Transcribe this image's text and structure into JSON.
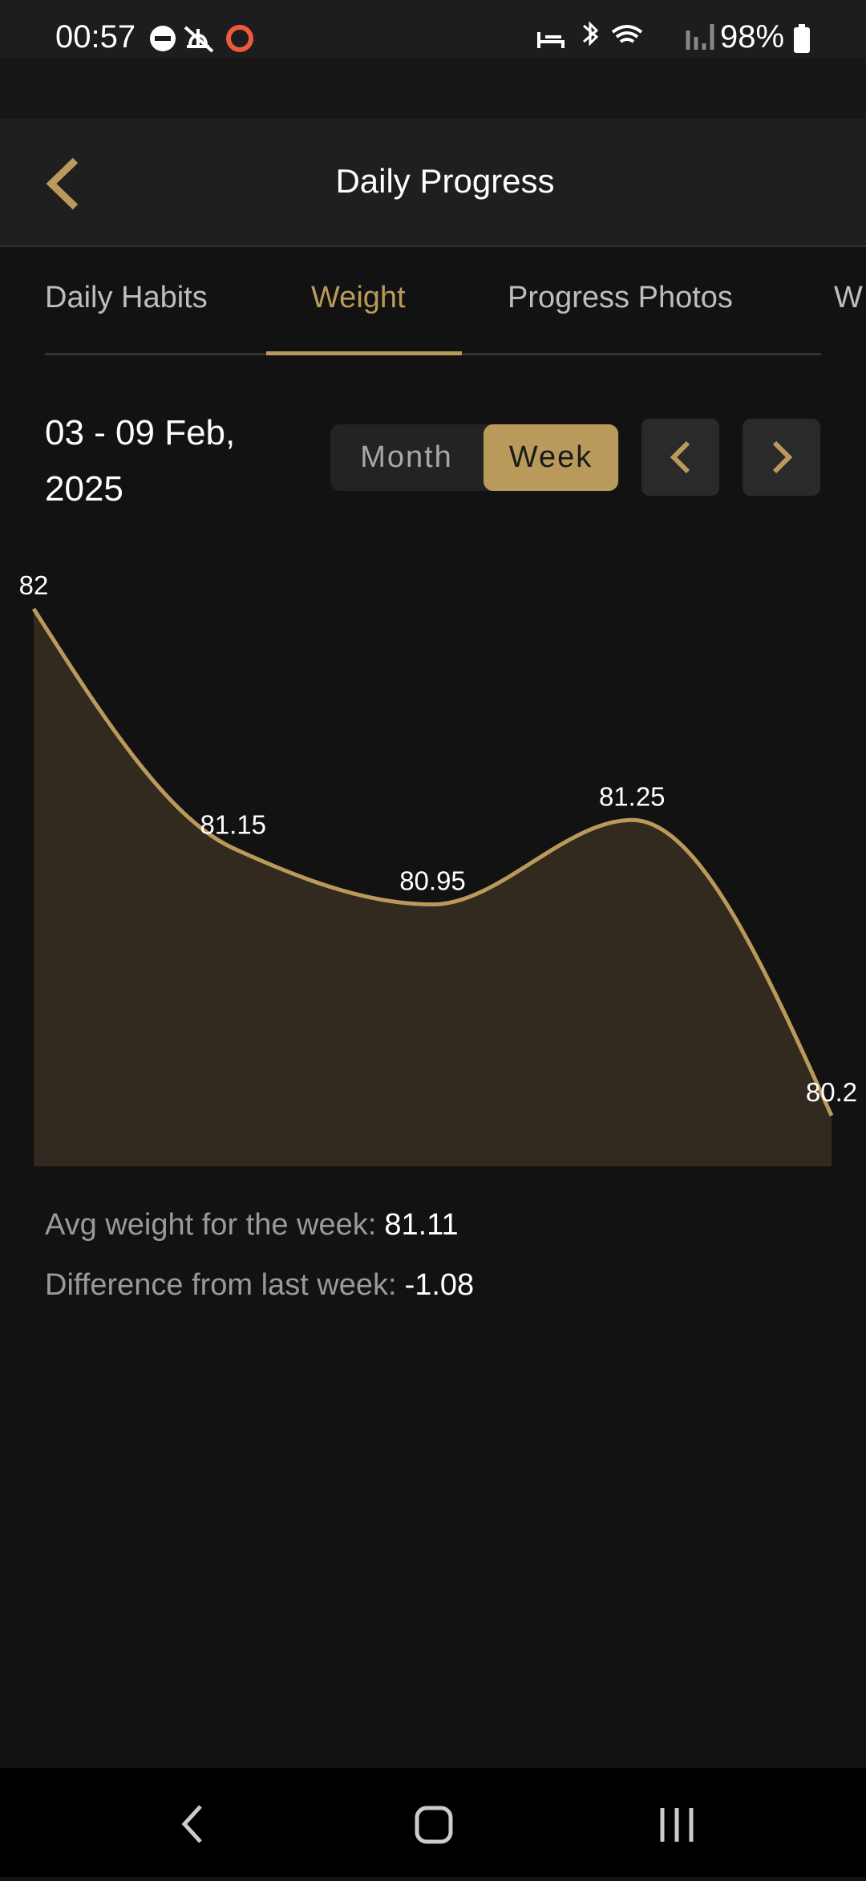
{
  "status_bar": {
    "time": "00:57",
    "battery": "98%"
  },
  "header": {
    "title": "Daily Progress"
  },
  "tabs": [
    "Daily Habits",
    "Weight",
    "Progress Photos",
    "W"
  ],
  "active_tab": 1,
  "date_range": "03 - 09 Feb, 2025",
  "period_toggle": [
    "Month",
    "Week"
  ],
  "chart_data": {
    "type": "area",
    "values": [
      82,
      81.15,
      80.95,
      81.25,
      80.2
    ],
    "ylim": [
      80.02,
      82
    ],
    "color": "#b99a5b",
    "fill": "#322a1f"
  },
  "summary": [
    {
      "label": "Avg weight for the week:",
      "value": "81.11"
    },
    {
      "label": "Difference from last week:",
      "value": "-1.08"
    }
  ]
}
